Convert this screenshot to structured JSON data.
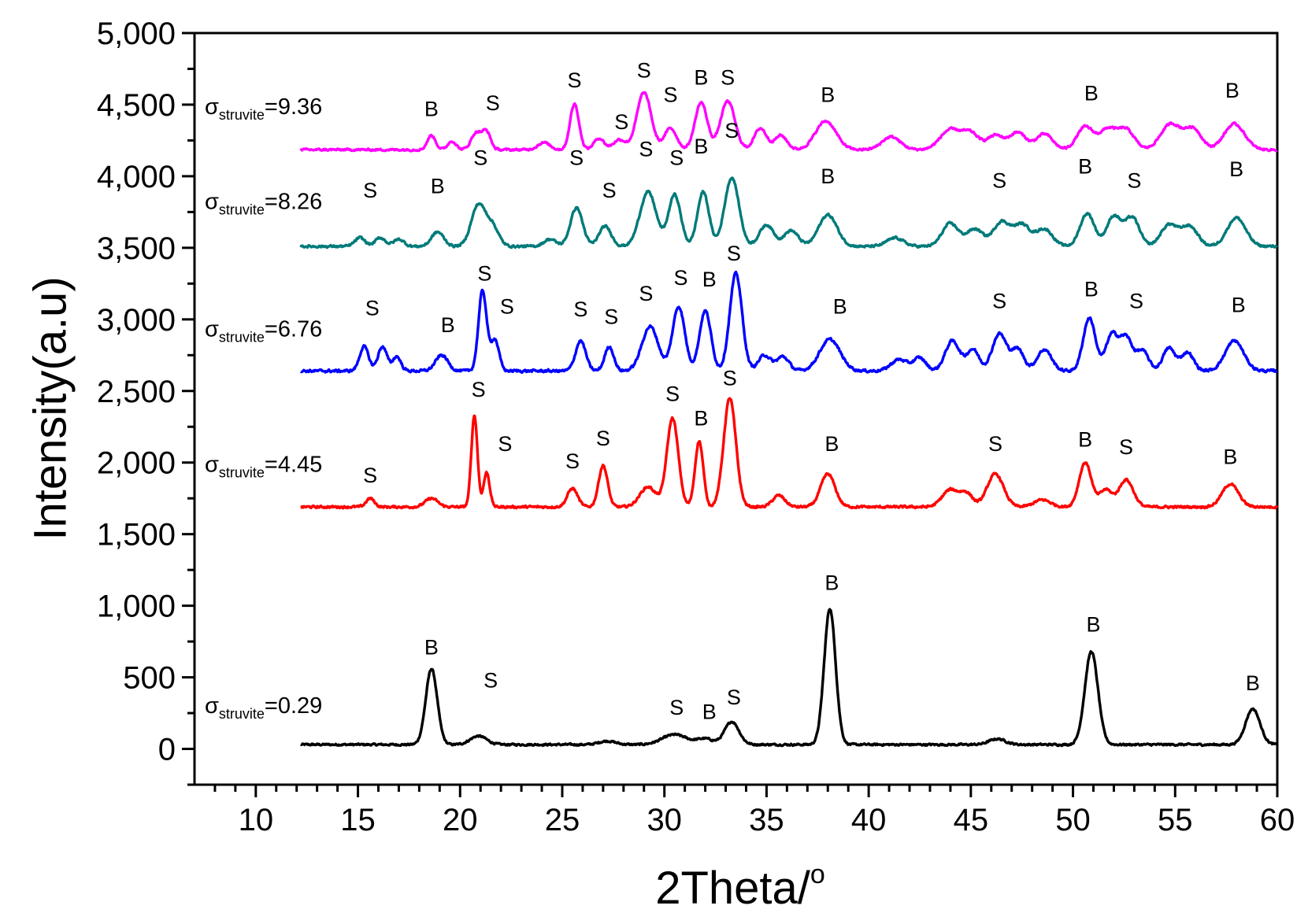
{
  "chart_data": {
    "type": "line",
    "title": "",
    "xlabel": "2Theta/",
    "xlabel_superscript": "o",
    "ylabel": "Intensity(a.u)",
    "xlim": [
      7,
      60
    ],
    "ylim": [
      -250,
      5000
    ],
    "x_ticks": [
      10,
      15,
      20,
      25,
      30,
      35,
      40,
      45,
      50,
      55,
      60
    ],
    "y_ticks": [
      0,
      500,
      1000,
      1500,
      2000,
      2500,
      3000,
      3500,
      4000,
      4500,
      5000
    ],
    "y_tick_labels": [
      "0",
      "500",
      "1,000",
      "1,500",
      "2,000",
      "2,500",
      "3,000",
      "3,500",
      "4,000",
      "4,500",
      "5,000"
    ],
    "x_range": [
      12.2,
      60
    ],
    "grid": false,
    "legend": "inline series labels on left",
    "series": [
      {
        "name": "σstruvite=0.29",
        "sigma_symbol": "σ",
        "sub": "struvite",
        "value_text": "=0.29",
        "color": "#000000",
        "baseline": 30,
        "noise": 10,
        "label_x": 7.5,
        "label_y": 250,
        "peaks": [
          [
            18.6,
            530,
            0.28
          ],
          [
            20.9,
            60,
            0.4
          ],
          [
            27.2,
            25,
            0.4
          ],
          [
            30.5,
            70,
            0.6
          ],
          [
            32.0,
            40,
            0.4
          ],
          [
            33.3,
            160,
            0.35
          ],
          [
            38.1,
            950,
            0.28
          ],
          [
            46.3,
            40,
            0.4
          ],
          [
            50.9,
            650,
            0.32
          ],
          [
            58.8,
            250,
            0.35
          ]
        ],
        "labels": [
          {
            "t": "B",
            "x": 18.6,
            "y": 660
          },
          {
            "t": "S",
            "x": 21.5,
            "y": 430
          },
          {
            "t": "S",
            "x": 30.6,
            "y": 240
          },
          {
            "t": "B",
            "x": 32.2,
            "y": 210
          },
          {
            "t": "S",
            "x": 33.4,
            "y": 310
          },
          {
            "t": "B",
            "x": 38.2,
            "y": 1110
          },
          {
            "t": "B",
            "x": 51.0,
            "y": 820
          },
          {
            "t": "B",
            "x": 58.8,
            "y": 410
          }
        ]
      },
      {
        "name": "σstruvite=4.45",
        "sigma_symbol": "σ",
        "sub": "struvite",
        "value_text": "=4.45",
        "color": "#ff0000",
        "baseline": 1690,
        "noise": 12,
        "label_x": 7.5,
        "label_y": 1935,
        "peaks": [
          [
            15.6,
            60,
            0.2
          ],
          [
            18.6,
            60,
            0.3
          ],
          [
            20.7,
            640,
            0.15
          ],
          [
            21.3,
            240,
            0.15
          ],
          [
            25.5,
            130,
            0.25
          ],
          [
            27.0,
            290,
            0.22
          ],
          [
            29.2,
            140,
            0.4
          ],
          [
            30.4,
            620,
            0.28
          ],
          [
            31.7,
            460,
            0.2
          ],
          [
            33.2,
            760,
            0.3
          ],
          [
            35.6,
            80,
            0.3
          ],
          [
            38.0,
            230,
            0.35
          ],
          [
            44.0,
            120,
            0.4
          ],
          [
            44.8,
            90,
            0.3
          ],
          [
            46.2,
            230,
            0.4
          ],
          [
            48.5,
            50,
            0.4
          ],
          [
            50.6,
            310,
            0.3
          ],
          [
            51.6,
            120,
            0.3
          ],
          [
            52.6,
            190,
            0.35
          ],
          [
            57.7,
            160,
            0.4
          ]
        ],
        "labels": [
          {
            "t": "S",
            "x": 15.6,
            "y": 1860
          },
          {
            "t": "S",
            "x": 20.9,
            "y": 2460
          },
          {
            "t": "S",
            "x": 22.2,
            "y": 2080
          },
          {
            "t": "S",
            "x": 25.5,
            "y": 1960
          },
          {
            "t": "S",
            "x": 27.0,
            "y": 2120
          },
          {
            "t": "S",
            "x": 30.4,
            "y": 2430
          },
          {
            "t": "B",
            "x": 31.8,
            "y": 2260
          },
          {
            "t": "S",
            "x": 33.2,
            "y": 2540
          },
          {
            "t": "B",
            "x": 38.2,
            "y": 2080
          },
          {
            "t": "S",
            "x": 46.2,
            "y": 2080
          },
          {
            "t": "B",
            "x": 50.6,
            "y": 2110
          },
          {
            "t": "S",
            "x": 52.6,
            "y": 2060
          },
          {
            "t": "B",
            "x": 57.7,
            "y": 1990
          }
        ]
      },
      {
        "name": "σstruvite=6.76",
        "sigma_symbol": "σ",
        "sub": "struvite",
        "value_text": "=6.76",
        "color": "#0000ff",
        "baseline": 2640,
        "noise": 14,
        "label_x": 7.5,
        "label_y": 2880,
        "peaks": [
          [
            15.3,
            170,
            0.22
          ],
          [
            16.2,
            170,
            0.22
          ],
          [
            16.9,
            100,
            0.2
          ],
          [
            19.1,
            110,
            0.3
          ],
          [
            21.1,
            560,
            0.2
          ],
          [
            21.7,
            220,
            0.2
          ],
          [
            25.9,
            210,
            0.25
          ],
          [
            27.3,
            170,
            0.22
          ],
          [
            29.3,
            310,
            0.4
          ],
          [
            30.7,
            450,
            0.3
          ],
          [
            32.0,
            420,
            0.28
          ],
          [
            33.5,
            680,
            0.3
          ],
          [
            34.9,
            110,
            0.3
          ],
          [
            35.8,
            100,
            0.3
          ],
          [
            38.1,
            220,
            0.5
          ],
          [
            41.5,
            80,
            0.4
          ],
          [
            42.5,
            90,
            0.3
          ],
          [
            44.1,
            210,
            0.35
          ],
          [
            45.1,
            150,
            0.3
          ],
          [
            46.4,
            260,
            0.35
          ],
          [
            47.3,
            150,
            0.3
          ],
          [
            48.6,
            150,
            0.35
          ],
          [
            50.8,
            370,
            0.3
          ],
          [
            51.9,
            250,
            0.3
          ],
          [
            52.6,
            230,
            0.3
          ],
          [
            53.4,
            140,
            0.3
          ],
          [
            54.7,
            160,
            0.3
          ],
          [
            55.6,
            130,
            0.3
          ],
          [
            57.9,
            210,
            0.45
          ]
        ],
        "labels": [
          {
            "t": "S",
            "x": 15.7,
            "y": 3030
          },
          {
            "t": "B",
            "x": 19.4,
            "y": 2910
          },
          {
            "t": "S",
            "x": 21.2,
            "y": 3270
          },
          {
            "t": "S",
            "x": 22.3,
            "y": 3040
          },
          {
            "t": "S",
            "x": 25.9,
            "y": 3020
          },
          {
            "t": "S",
            "x": 27.4,
            "y": 2970
          },
          {
            "t": "S",
            "x": 29.1,
            "y": 3130
          },
          {
            "t": "S",
            "x": 30.8,
            "y": 3240
          },
          {
            "t": "B",
            "x": 32.2,
            "y": 3230
          },
          {
            "t": "S",
            "x": 33.4,
            "y": 3410
          },
          {
            "t": "B",
            "x": 38.6,
            "y": 3040
          },
          {
            "t": "S",
            "x": 46.4,
            "y": 3080
          },
          {
            "t": "B",
            "x": 50.9,
            "y": 3160
          },
          {
            "t": "S",
            "x": 53.1,
            "y": 3080
          },
          {
            "t": "B",
            "x": 58.1,
            "y": 3050
          }
        ]
      },
      {
        "name": "σstruvite=8.26",
        "sigma_symbol": "σ",
        "sub": "struvite",
        "value_text": "=8.26",
        "color": "#007a7a",
        "baseline": 3510,
        "noise": 12,
        "label_x": 7.5,
        "label_y": 3770,
        "peaks": [
          [
            15.1,
            60,
            0.25
          ],
          [
            16.1,
            60,
            0.25
          ],
          [
            17.0,
            50,
            0.25
          ],
          [
            18.9,
            100,
            0.3
          ],
          [
            20.9,
            290,
            0.35
          ],
          [
            21.6,
            130,
            0.3
          ],
          [
            24.4,
            50,
            0.3
          ],
          [
            25.7,
            270,
            0.3
          ],
          [
            27.1,
            140,
            0.3
          ],
          [
            29.2,
            380,
            0.4
          ],
          [
            30.5,
            360,
            0.3
          ],
          [
            31.9,
            380,
            0.28
          ],
          [
            33.3,
            480,
            0.35
          ],
          [
            35.0,
            150,
            0.35
          ],
          [
            36.2,
            110,
            0.35
          ],
          [
            38.0,
            220,
            0.45
          ],
          [
            41.3,
            60,
            0.4
          ],
          [
            44.0,
            160,
            0.4
          ],
          [
            45.2,
            120,
            0.4
          ],
          [
            46.5,
            170,
            0.4
          ],
          [
            47.5,
            150,
            0.4
          ],
          [
            48.6,
            120,
            0.4
          ],
          [
            50.7,
            230,
            0.35
          ],
          [
            52.0,
            210,
            0.35
          ],
          [
            52.9,
            200,
            0.35
          ],
          [
            54.7,
            150,
            0.4
          ],
          [
            55.7,
            140,
            0.4
          ],
          [
            58.0,
            200,
            0.45
          ]
        ],
        "labels": [
          {
            "t": "S",
            "x": 15.6,
            "y": 3850
          },
          {
            "t": "B",
            "x": 18.9,
            "y": 3880
          },
          {
            "t": "S",
            "x": 21.0,
            "y": 4080
          },
          {
            "t": "S",
            "x": 25.7,
            "y": 4080
          },
          {
            "t": "S",
            "x": 27.3,
            "y": 3850
          },
          {
            "t": "S",
            "x": 29.1,
            "y": 4140
          },
          {
            "t": "S",
            "x": 30.6,
            "y": 4080
          },
          {
            "t": "B",
            "x": 31.8,
            "y": 4160
          },
          {
            "t": "S",
            "x": 33.3,
            "y": 4270
          },
          {
            "t": "B",
            "x": 38.0,
            "y": 3950
          },
          {
            "t": "S",
            "x": 46.4,
            "y": 3920
          },
          {
            "t": "B",
            "x": 50.6,
            "y": 4020
          },
          {
            "t": "S",
            "x": 53.0,
            "y": 3920
          },
          {
            "t": "B",
            "x": 58.0,
            "y": 4000
          }
        ]
      },
      {
        "name": "σstruvite=9.36",
        "sigma_symbol": "σ",
        "sub": "struvite",
        "value_text": "=9.36",
        "color": "#ff00ff",
        "baseline": 4185,
        "noise": 11,
        "label_x": 7.5,
        "label_y": 4435,
        "peaks": [
          [
            18.6,
            100,
            0.2
          ],
          [
            19.6,
            60,
            0.2
          ],
          [
            20.8,
            120,
            0.25
          ],
          [
            21.3,
            120,
            0.2
          ],
          [
            24.1,
            50,
            0.3
          ],
          [
            25.6,
            320,
            0.22
          ],
          [
            26.8,
            80,
            0.25
          ],
          [
            27.8,
            70,
            0.3
          ],
          [
            29.0,
            400,
            0.35
          ],
          [
            30.3,
            150,
            0.3
          ],
          [
            31.8,
            330,
            0.3
          ],
          [
            33.1,
            340,
            0.35
          ],
          [
            34.7,
            150,
            0.3
          ],
          [
            35.7,
            100,
            0.3
          ],
          [
            37.9,
            200,
            0.5
          ],
          [
            41.1,
            90,
            0.45
          ],
          [
            44.0,
            140,
            0.5
          ],
          [
            45.0,
            110,
            0.4
          ],
          [
            46.2,
            100,
            0.4
          ],
          [
            47.3,
            120,
            0.4
          ],
          [
            48.6,
            110,
            0.4
          ],
          [
            50.6,
            160,
            0.4
          ],
          [
            51.7,
            140,
            0.4
          ],
          [
            52.6,
            140,
            0.4
          ],
          [
            54.8,
            180,
            0.5
          ],
          [
            55.9,
            140,
            0.4
          ],
          [
            57.9,
            180,
            0.5
          ]
        ],
        "labels": [
          {
            "t": "B",
            "x": 18.6,
            "y": 4420
          },
          {
            "t": "S",
            "x": 21.6,
            "y": 4460
          },
          {
            "t": "S",
            "x": 25.6,
            "y": 4620
          },
          {
            "t": "S",
            "x": 27.9,
            "y": 4330
          },
          {
            "t": "S",
            "x": 29.0,
            "y": 4690
          },
          {
            "t": "S",
            "x": 30.3,
            "y": 4520
          },
          {
            "t": "B",
            "x": 31.8,
            "y": 4640
          },
          {
            "t": "S",
            "x": 33.1,
            "y": 4640
          },
          {
            "t": "B",
            "x": 38.0,
            "y": 4520
          },
          {
            "t": "B",
            "x": 50.9,
            "y": 4530
          },
          {
            "t": "B",
            "x": 57.8,
            "y": 4550
          }
        ]
      }
    ]
  }
}
